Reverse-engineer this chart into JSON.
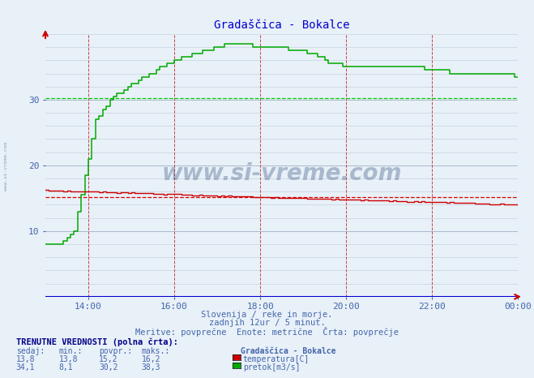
{
  "title": "Gradaščica - Bokalce",
  "title_color": "#0000cc",
  "bg_color": "#e8f0f8",
  "plot_bg_color": "#e8f0f8",
  "xlim_min": 0,
  "xlim_max": 132,
  "ylim_min": 0,
  "ylim_max": 40,
  "yticks": [
    10,
    20,
    30
  ],
  "xtick_labels": [
    "14:00",
    "16:00",
    "18:00",
    "20:00",
    "22:00",
    "00:00"
  ],
  "xtick_positions": [
    12,
    36,
    60,
    84,
    108,
    132
  ],
  "avg_temp": 15.2,
  "avg_flow": 30.2,
  "temp_color": "#cc0000",
  "flow_color": "#00aa00",
  "avg_temp_color": "#dd0000",
  "avg_flow_color": "#00cc00",
  "watermark": "www.si-vreme.com",
  "sub_text1": "Slovenija / reke in morje.",
  "sub_text2": "zadnjih 12ur / 5 minut.",
  "sub_text3": "Meritve: povprečne  Enote: metrične  Črta: povprečje",
  "footer_title": "TRENUTNE VREDNOSTI (polna črta):",
  "col_headers": [
    "sedaj:",
    "min.:",
    "povpr.:",
    "maks.:"
  ],
  "temp_values": [
    "13,8",
    "13,8",
    "15,2",
    "16,2"
  ],
  "flow_values": [
    "34,1",
    "8,1",
    "30,2",
    "38,3"
  ],
  "legend_station": "Gradaščica - Bokalce",
  "legend_temp": "temperatura[C]",
  "legend_flow": "pretok[m3/s]"
}
